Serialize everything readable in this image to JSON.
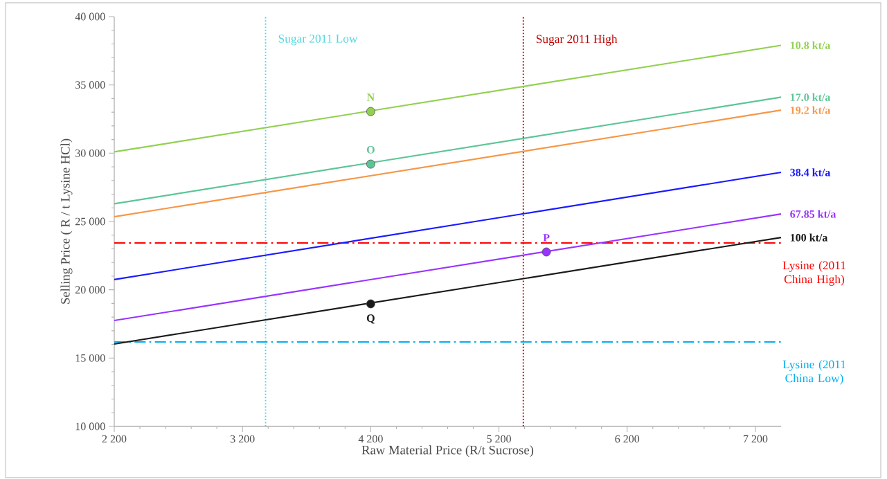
{
  "chart_data": {
    "type": "line",
    "xlabel": "Raw Material Price (R/t Sucrose)",
    "ylabel": "Selling Price ( R / t Lysine HCl)",
    "xlim": [
      2200,
      7400
    ],
    "ylim": [
      10000,
      40000
    ],
    "xticks": [
      {
        "value": 2200,
        "label": "2 200"
      },
      {
        "value": 3200,
        "label": "3 200"
      },
      {
        "value": 4200,
        "label": "4 200"
      },
      {
        "value": 5200,
        "label": "5 200"
      },
      {
        "value": 6200,
        "label": "6 200"
      },
      {
        "value": 7200,
        "label": "7 200"
      }
    ],
    "yticks": [
      {
        "value": 10000,
        "label": "10 000"
      },
      {
        "value": 15000,
        "label": "15 000"
      },
      {
        "value": 20000,
        "label": "20 000"
      },
      {
        "value": 25000,
        "label": "25 000"
      },
      {
        "value": 30000,
        "label": "30 000"
      },
      {
        "value": 35000,
        "label": "35 000"
      },
      {
        "value": 40000,
        "label": "40 000"
      }
    ],
    "grid": false,
    "series": [
      {
        "name": "10.8 kt/a",
        "color": "#92d050",
        "marker": "none",
        "x": [
          2200,
          7400
        ],
        "values": [
          30100,
          37900
        ]
      },
      {
        "name": "17.0 kt/a",
        "color": "#5cc596",
        "marker": "none",
        "x": [
          2200,
          7400
        ],
        "values": [
          26300,
          34100
        ]
      },
      {
        "name": "19.2 kt/a",
        "color": "#f79646",
        "marker": "none",
        "x": [
          2200,
          7400
        ],
        "values": [
          25350,
          33150
        ]
      },
      {
        "name": "38.4 kt/a",
        "color": "#1a1aff",
        "marker": "none",
        "x": [
          2200,
          7400
        ],
        "values": [
          20750,
          28600
        ]
      },
      {
        "name": "67.85 kt/a",
        "color": "#9933ff",
        "marker": "none",
        "x": [
          2200,
          7400
        ],
        "values": [
          17750,
          25550
        ]
      },
      {
        "name": "100 kt/a",
        "color": "#1a1a1a",
        "marker": "none",
        "x": [
          2200,
          7400
        ],
        "values": [
          16030,
          23830
        ]
      },
      {
        "type": "scatter",
        "name": "N",
        "color": "#92d050",
        "marker": "circle",
        "x": [
          4200
        ],
        "values": [
          33050
        ]
      },
      {
        "type": "scatter",
        "name": "O",
        "color": "#5cc596",
        "marker": "circle",
        "x": [
          4200
        ],
        "values": [
          29200
        ]
      },
      {
        "type": "scatter",
        "name": "P",
        "color": "#9933ff",
        "marker": "circle",
        "x": [
          5570
        ],
        "values": [
          22770
        ]
      },
      {
        "type": "scatter",
        "name": "Q",
        "color": "#1a1a1a",
        "marker": "circle",
        "x": [
          4200
        ],
        "values": [
          18970
        ]
      }
    ],
    "ref_lines": [
      {
        "axis": "x",
        "value": 3380,
        "label": "Sugar 2011 Low",
        "color": "#4fd8e0",
        "line_style": "dotted"
      },
      {
        "axis": "x",
        "value": 5390,
        "label": "Sugar 2011 High",
        "color": "#c00000",
        "line_style": "dotted"
      },
      {
        "axis": "y",
        "value": 23430,
        "label": "Lysine (2011 China High)",
        "color": "#ff0000",
        "line_style": "dashdot"
      },
      {
        "axis": "y",
        "value": 16180,
        "label": "Lysine (2011 China Low)",
        "color": "#00b0f0",
        "line_style": "dashdot"
      }
    ]
  }
}
